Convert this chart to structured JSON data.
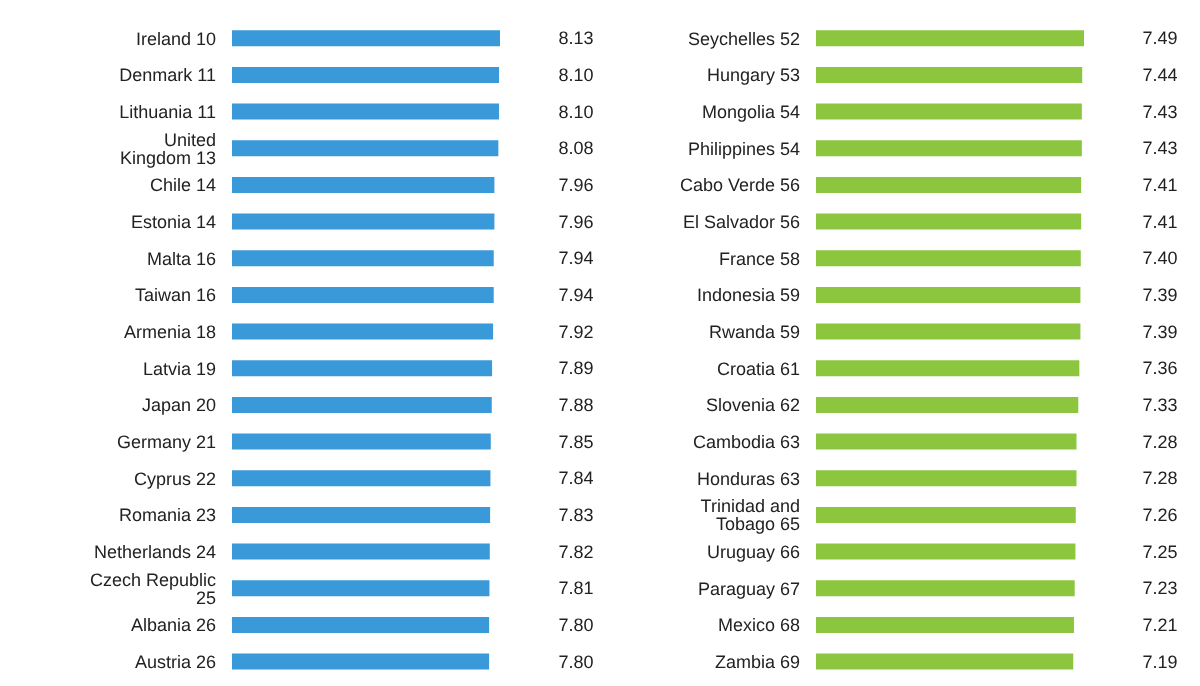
{
  "chart_data": [
    {
      "type": "bar",
      "orientation": "horizontal",
      "categories": [
        "Ireland 10",
        "Denmark 11",
        "Lithuania 11",
        "United Kingdom 13",
        "Chile 14",
        "Estonia 14",
        "Malta 16",
        "Taiwan 16",
        "Armenia 18",
        "Latvia 19",
        "Japan 20",
        "Germany 21",
        "Cyprus 22",
        "Romania 23",
        "Netherlands 24",
        "Czech Republic 25",
        "Albania 26",
        "Austria 26"
      ],
      "values": [
        8.13,
        8.1,
        8.1,
        8.08,
        7.96,
        7.96,
        7.94,
        7.94,
        7.92,
        7.89,
        7.88,
        7.85,
        7.84,
        7.83,
        7.82,
        7.81,
        7.8,
        7.8
      ],
      "value_labels": [
        "8.13",
        "8.10",
        "8.10",
        "8.08",
        "7.96",
        "7.96",
        "7.94",
        "7.94",
        "7.92",
        "7.89",
        "7.88",
        "7.85",
        "7.84",
        "7.83",
        "7.82",
        "7.81",
        "7.80",
        "7.80"
      ],
      "color": "#3a9ad9",
      "legend": false
    },
    {
      "type": "bar",
      "orientation": "horizontal",
      "categories": [
        "Seychelles 52",
        "Hungary 53",
        "Mongolia 54",
        "Philippines 54",
        "Cabo Verde 56",
        "El Salvador 56",
        "France 58",
        "Indonesia 59",
        "Rwanda 59",
        "Croatia 61",
        "Slovenia 62",
        "Cambodia 63",
        "Honduras 63",
        "Trinidad and Tobago 65",
        "Uruguay 66",
        "Paraguay 67",
        "Mexico 68",
        "Zambia 69"
      ],
      "values": [
        7.49,
        7.44,
        7.43,
        7.43,
        7.41,
        7.41,
        7.4,
        7.39,
        7.39,
        7.36,
        7.33,
        7.28,
        7.28,
        7.26,
        7.25,
        7.23,
        7.21,
        7.19
      ],
      "value_labels": [
        "7.49",
        "7.44",
        "7.43",
        "7.43",
        "7.41",
        "7.41",
        "7.40",
        "7.39",
        "7.39",
        "7.36",
        "7.33",
        "7.28",
        "7.28",
        "7.26",
        "7.25",
        "7.23",
        "7.21",
        "7.19"
      ],
      "color": "#8cc63f",
      "legend": false
    }
  ]
}
